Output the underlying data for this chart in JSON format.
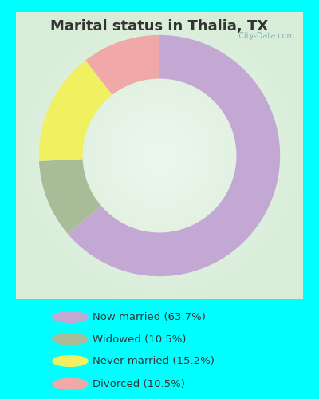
{
  "title": "Marital status in Thalia, TX",
  "title_color": "#333333",
  "title_fontsize": 13,
  "bg_cyan": "#00FFFF",
  "bg_chart_center": "#e8f5e8",
  "bg_chart_edge": "#c8e8c8",
  "slices": [
    63.7,
    10.5,
    15.2,
    10.5
  ],
  "labels": [
    "Now married (63.7%)",
    "Widowed (10.5%)",
    "Never married (15.2%)",
    "Divorced (10.5%)"
  ],
  "colors": [
    "#c4a8d4",
    "#a8bc98",
    "#f0f060",
    "#f0a8a8"
  ],
  "donut_width": 0.38,
  "startangle": 90,
  "watermark": "  City-Data.com"
}
